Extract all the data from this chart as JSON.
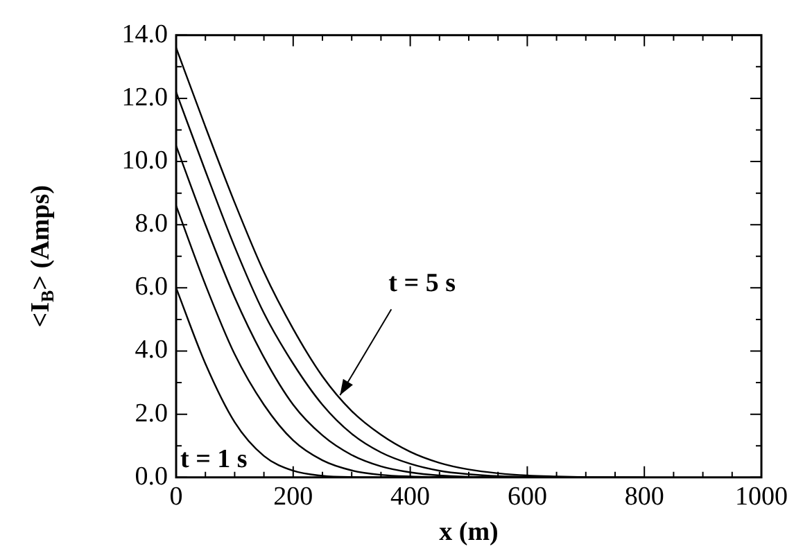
{
  "chart_data": {
    "type": "line",
    "xlabel": "x (m)",
    "ylabel": "<I$_{B}$> (Amps)",
    "xlim": [
      0,
      1000
    ],
    "ylim": [
      0,
      14
    ],
    "xticks": [
      0,
      {
        "value": 50,
        "label": null
      },
      {
        "value": 100,
        "label": null
      },
      {
        "value": 150,
        "label": null
      },
      200,
      {
        "value": 250,
        "label": null
      },
      {
        "value": 300,
        "label": null
      },
      {
        "value": 350,
        "label": null
      },
      400,
      {
        "value": 450,
        "label": null
      },
      {
        "value": 500,
        "label": null
      },
      {
        "value": 550,
        "label": null
      },
      600,
      {
        "value": 650,
        "label": null
      },
      {
        "value": 700,
        "label": null
      },
      {
        "value": 750,
        "label": null
      },
      800,
      {
        "value": 850,
        "label": null
      },
      {
        "value": 900,
        "label": null
      },
      {
        "value": 950,
        "label": null
      },
      1000
    ],
    "yticks": [
      {
        "value": 0,
        "label": "0.0"
      },
      {
        "value": 1,
        "label": null
      },
      {
        "value": 2,
        "label": "2.0"
      },
      {
        "value": 3,
        "label": null
      },
      {
        "value": 4,
        "label": "4.0"
      },
      {
        "value": 5,
        "label": null
      },
      {
        "value": 6,
        "label": "6.0"
      },
      {
        "value": 7,
        "label": null
      },
      {
        "value": 8,
        "label": "8.0"
      },
      {
        "value": 9,
        "label": null
      },
      {
        "value": 10,
        "label": "10.0"
      },
      {
        "value": 11,
        "label": null
      },
      {
        "value": 12,
        "label": "12.0"
      },
      {
        "value": 13,
        "label": null
      },
      {
        "value": 14,
        "label": "14.0"
      }
    ],
    "grid": false,
    "legend": false,
    "marker": "none",
    "line_style": "solid",
    "series": [
      {
        "color": "#000000",
        "x": [
          0,
          50,
          100,
          150,
          200,
          250,
          300,
          400
        ],
        "values": [
          6.0,
          3.6,
          1.75,
          0.68,
          0.21,
          0.05,
          0.01,
          0
        ]
      },
      {
        "color": "#000000",
        "x": [
          0,
          50,
          100,
          150,
          200,
          250,
          300,
          350,
          400,
          500
        ],
        "values": [
          8.6,
          6.1,
          3.9,
          2.3,
          1.17,
          0.54,
          0.22,
          0.08,
          0.03,
          0
        ]
      },
      {
        "color": "#000000",
        "x": [
          0,
          50,
          100,
          150,
          200,
          250,
          300,
          350,
          400,
          450,
          500,
          600
        ],
        "values": [
          10.5,
          8.0,
          5.7,
          3.8,
          2.3,
          1.33,
          0.71,
          0.35,
          0.16,
          0.06,
          0.02,
          0
        ]
      },
      {
        "color": "#000000",
        "x": [
          0,
          50,
          100,
          150,
          200,
          250,
          300,
          350,
          400,
          450,
          500,
          550,
          600,
          700
        ],
        "values": [
          12.2,
          9.7,
          7.3,
          5.2,
          3.6,
          2.3,
          1.38,
          0.79,
          0.43,
          0.21,
          0.1,
          0.04,
          0.02,
          0
        ]
      },
      {
        "color": "#000000",
        "x": [
          0,
          50,
          100,
          150,
          200,
          250,
          300,
          350,
          400,
          450,
          500,
          550,
          600,
          650,
          700,
          800
        ],
        "values": [
          13.6,
          11.1,
          8.7,
          6.5,
          4.7,
          3.2,
          2.1,
          1.35,
          0.81,
          0.46,
          0.25,
          0.13,
          0.06,
          0.03,
          0.01,
          0
        ]
      }
    ],
    "annotations": [
      {
        "text": "t = 5 s",
        "x": 280,
        "y": 2.6
      },
      "t = 1 s"
    ]
  }
}
